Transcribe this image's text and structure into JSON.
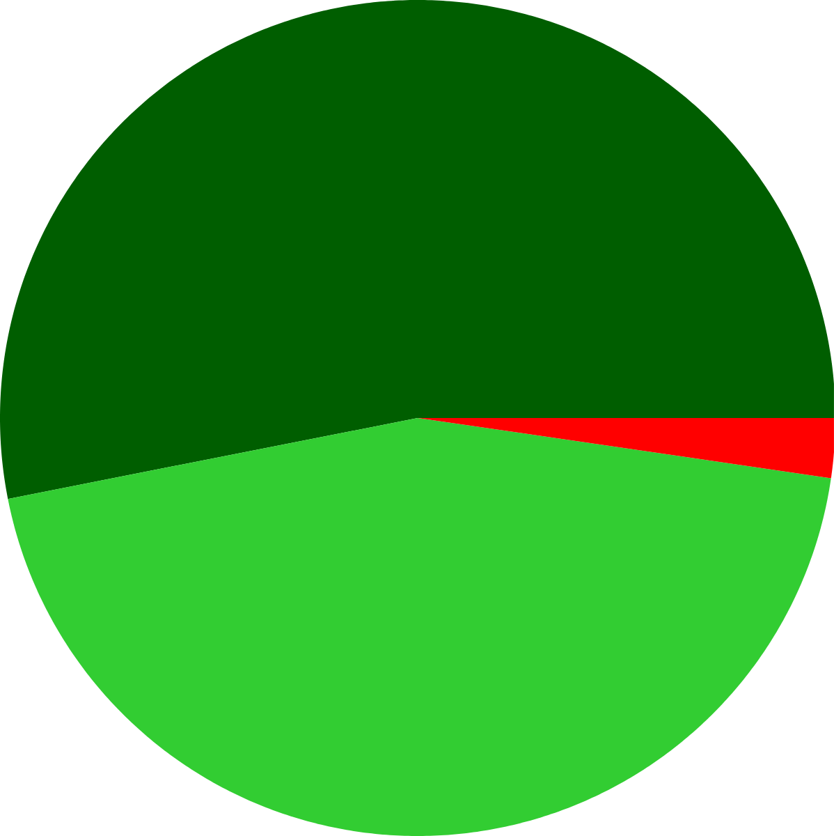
{
  "chart_data": {
    "type": "pie",
    "categories": [
      null,
      null,
      null
    ],
    "values": [
      53.1,
      44.6,
      2.3
    ],
    "colors": [
      "#005e00",
      "#32cd32",
      "#ff0000"
    ]
  }
}
